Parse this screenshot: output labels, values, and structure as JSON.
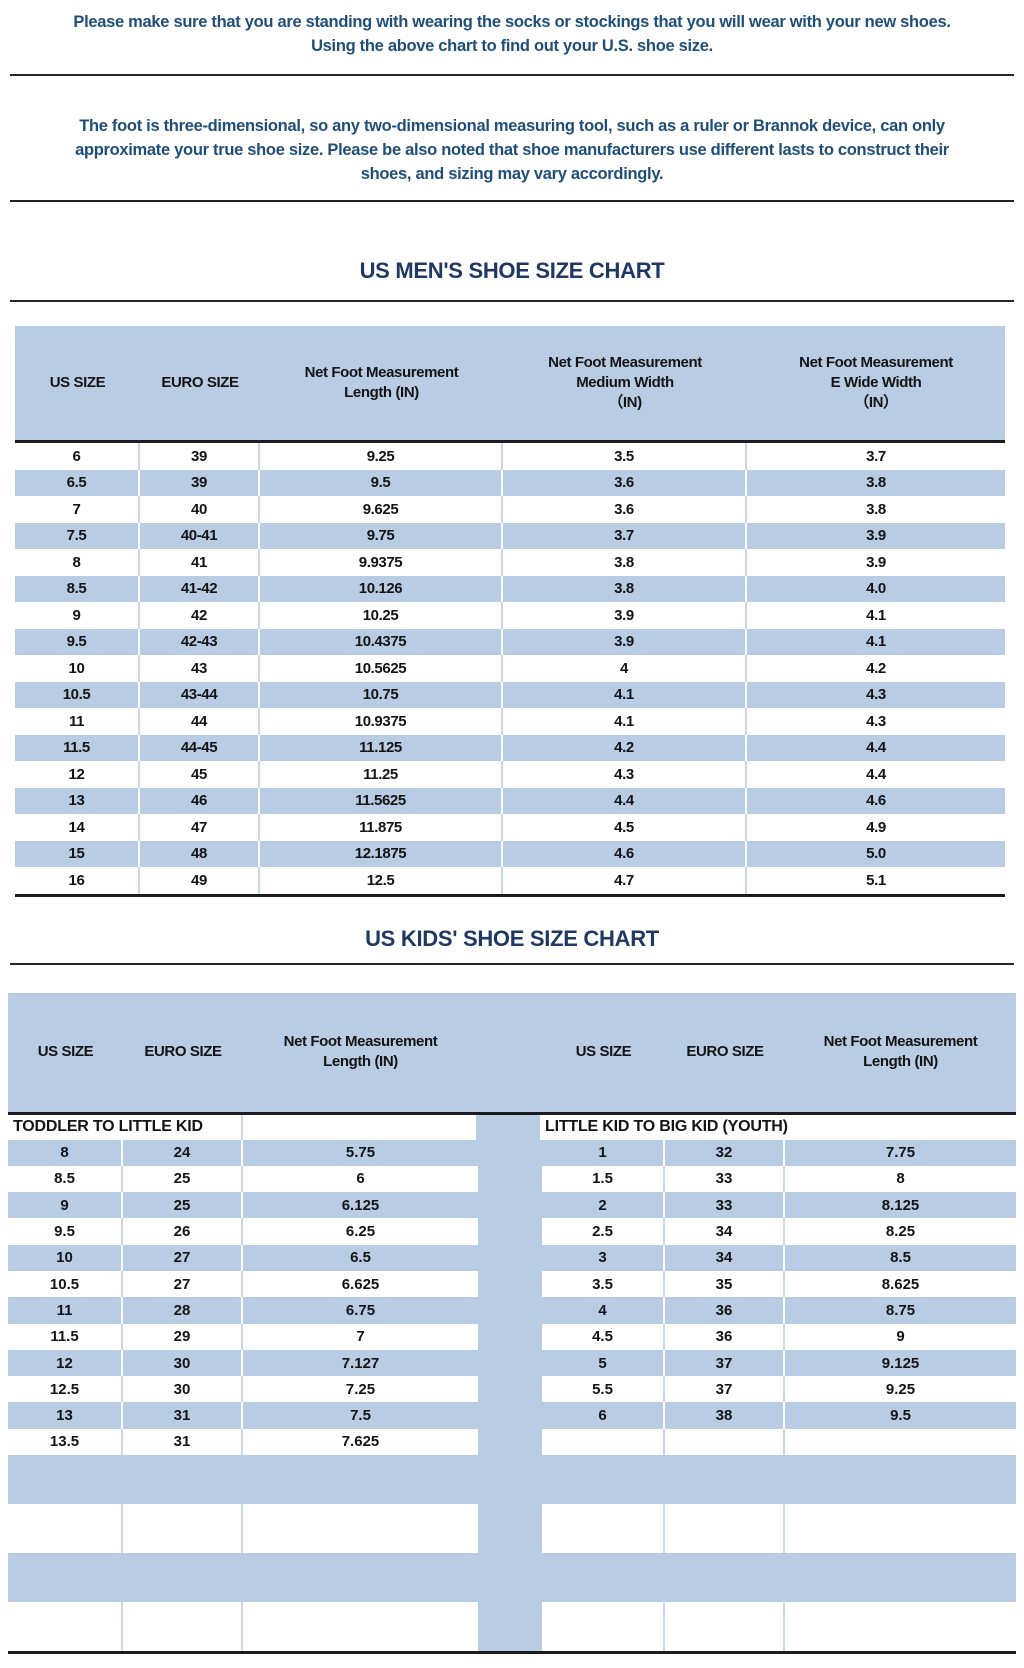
{
  "notes": {
    "top": "Please make sure that you are standing with wearing the socks or stockings that you will wear with your new shoes.\nUsing the above chart to find out your U.S. shoe size.",
    "disclaimer": "The foot is three-dimensional, so any two-dimensional measuring tool, such as a ruler or Brannok device, can only\napproximate your true shoe size. Please be also noted that shoe manufacturers use different lasts to construct their\nshoes, and sizing may vary accordingly."
  },
  "mens_chart": {
    "title": "US MEN'S SHOE SIZE CHART",
    "columns": [
      "US SIZE",
      "EURO SIZE",
      "Net Foot Measurement\nLength (IN)",
      "Net Foot Measurement\nMedium Width\n（IN)",
      "Net Foot Measurement\nE Wide Width\n（IN）"
    ],
    "rows": [
      [
        "6",
        "39",
        "9.25",
        "3.5",
        "3.7"
      ],
      [
        "6.5",
        "39",
        "9.5",
        "3.6",
        "3.8"
      ],
      [
        "7",
        "40",
        "9.625",
        "3.6",
        "3.8"
      ],
      [
        "7.5",
        "40-41",
        "9.75",
        "3.7",
        "3.9"
      ],
      [
        "8",
        "41",
        "9.9375",
        "3.8",
        "3.9"
      ],
      [
        "8.5",
        "41-42",
        "10.126",
        "3.8",
        "4.0"
      ],
      [
        "9",
        "42",
        "10.25",
        "3.9",
        "4.1"
      ],
      [
        "9.5",
        "42-43",
        "10.4375",
        "3.9",
        "4.1"
      ],
      [
        "10",
        "43",
        "10.5625",
        "4",
        "4.2"
      ],
      [
        "10.5",
        "43-44",
        "10.75",
        "4.1",
        "4.3"
      ],
      [
        "11",
        "44",
        "10.9375",
        "4.1",
        "4.3"
      ],
      [
        "11.5",
        "44-45",
        "11.125",
        "4.2",
        "4.4"
      ],
      [
        "12",
        "45",
        "11.25",
        "4.3",
        "4.4"
      ],
      [
        "13",
        "46",
        "11.5625",
        "4.4",
        "4.6"
      ],
      [
        "14",
        "47",
        "11.875",
        "4.5",
        "4.9"
      ],
      [
        "15",
        "48",
        "12.1875",
        "4.6",
        "5.0"
      ],
      [
        "16",
        "49",
        "12.5",
        "4.7",
        "5.1"
      ]
    ]
  },
  "kids_chart": {
    "title": "US KIDS' SHOE SIZE CHART",
    "columns": [
      "US SIZE",
      "EURO SIZE",
      "Net Foot Measurement\nLength (IN)",
      "US SIZE",
      "EURO SIZE",
      "Net Foot Measurement\nLength (IN)"
    ],
    "section_left": "TODDLER TO LITTLE KID",
    "section_right": "LITTLE KID TO BIG KID (YOUTH)",
    "rows_left": [
      [
        "8",
        "24",
        "5.75"
      ],
      [
        "8.5",
        "25",
        "6"
      ],
      [
        "9",
        "25",
        "6.125"
      ],
      [
        "9.5",
        "26",
        "6.25"
      ],
      [
        "10",
        "27",
        "6.5"
      ],
      [
        "10.5",
        "27",
        "6.625"
      ],
      [
        "11",
        "28",
        "6.75"
      ],
      [
        "11.5",
        "29",
        "7"
      ],
      [
        "12",
        "30",
        "7.127"
      ],
      [
        "12.5",
        "30",
        "7.25"
      ],
      [
        "13",
        "31",
        "7.5"
      ],
      [
        "13.5",
        "31",
        "7.625"
      ]
    ],
    "rows_right": [
      [
        "1",
        "32",
        "7.75"
      ],
      [
        "1.5",
        "33",
        "8"
      ],
      [
        "2",
        "33",
        "8.125"
      ],
      [
        "2.5",
        "34",
        "8.25"
      ],
      [
        "3",
        "34",
        "8.5"
      ],
      [
        "3.5",
        "35",
        "8.625"
      ],
      [
        "4",
        "36",
        "8.75"
      ],
      [
        "4.5",
        "36",
        "9"
      ],
      [
        "5",
        "37",
        "9.125"
      ],
      [
        "5.5",
        "37",
        "9.25"
      ],
      [
        "6",
        "38",
        "9.5"
      ]
    ],
    "empty_filler_rows": 4
  },
  "colors": {
    "row_blue": "#b8cce4",
    "note_text": "#1f4e79",
    "title_text": "#1f3864",
    "rule_line": "#262626",
    "table_line": "#1c1c1c"
  }
}
